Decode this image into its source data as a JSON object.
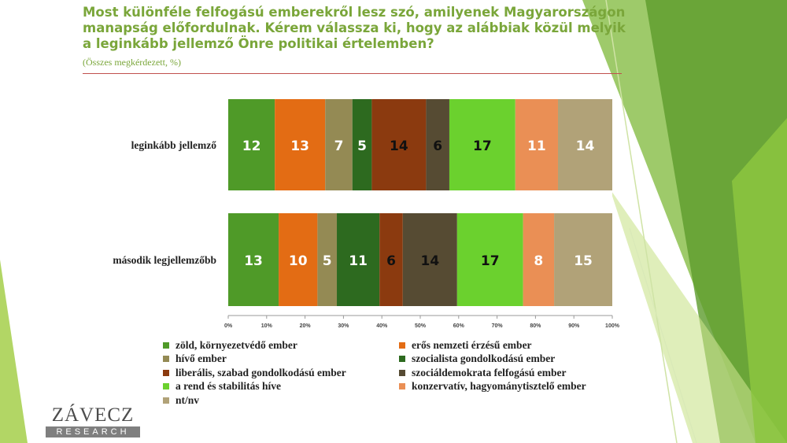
{
  "header": {
    "title": "Most különféle felfogású emberekről lesz szó, amilyenek Magyarországon manapság előfordulnak. Kérem válassza ki, hogy az alábbiak közül melyik a leginkább jellemző Önre politikai értelemben?",
    "subtitle": "(Összes megkérdezett, %)"
  },
  "logo": {
    "main": "ZÁVECZ",
    "sub": "RESEARCH"
  },
  "chart_data": {
    "type": "bar",
    "orientation": "horizontal",
    "stacked": "100%",
    "categories": [
      "leginkább jellemző",
      "második legjellemzőbb"
    ],
    "series": [
      {
        "name": "zöld, környezetvédő ember",
        "color": "#4f9a28",
        "label_color": "#ffffff",
        "values": [
          12,
          13
        ]
      },
      {
        "name": "erős nemzeti érzésű ember",
        "color": "#e36c14",
        "label_color": "#ffffff",
        "values": [
          13,
          10
        ]
      },
      {
        "name": "hívő ember",
        "color": "#948a54",
        "label_color": "#ffffff",
        "values": [
          7,
          5
        ]
      },
      {
        "name": "szocialista gondolkodású ember",
        "color": "#2d6a1f",
        "label_color": "#ffffff",
        "values": [
          5,
          11
        ]
      },
      {
        "name": "liberális, szabad gondolkodású ember",
        "color": "#8b3a0f",
        "label_color": "#111111",
        "values": [
          14,
          6
        ]
      },
      {
        "name": "szociáldemokrata felfogású ember",
        "color": "#564b33",
        "label_color": "#111111",
        "values": [
          6,
          14
        ]
      },
      {
        "name": "a rend és stabilitás híve",
        "color": "#6bd12e",
        "label_color": "#111111",
        "values": [
          17,
          17
        ]
      },
      {
        "name": "konzervatív, hagyománytisztelő ember",
        "color": "#ea8f55",
        "label_color": "#ffffff",
        "values": [
          11,
          8
        ]
      },
      {
        "name": "nt/nv",
        "color": "#b1a278",
        "label_color": "#ffffff",
        "values": [
          14,
          15
        ]
      }
    ],
    "x_ticks": [
      "0%",
      "10%",
      "20%",
      "30%",
      "40%",
      "50%",
      "60%",
      "70%",
      "80%",
      "90%",
      "100%"
    ],
    "xlim": [
      0,
      100
    ],
    "grid": false,
    "legend_position": "bottom"
  }
}
